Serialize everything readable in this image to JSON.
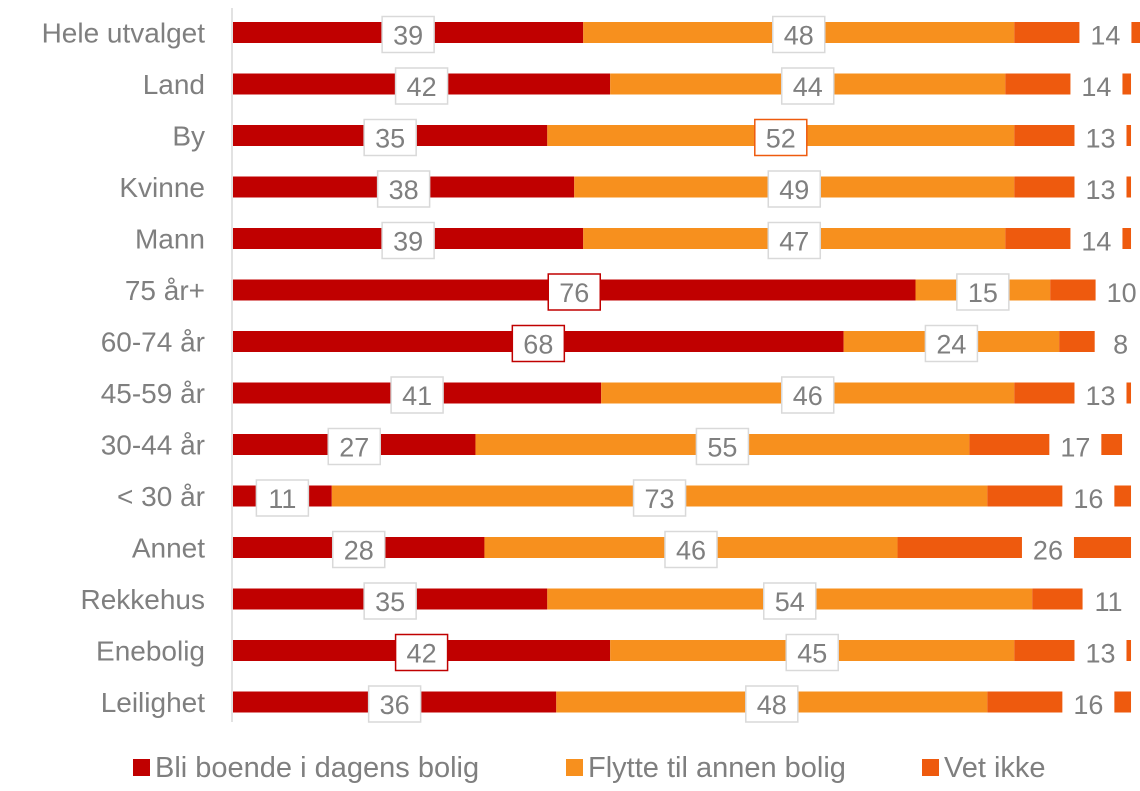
{
  "chart_data": {
    "type": "bar",
    "orientation": "horizontal",
    "stacked": true,
    "categories": [
      "Hele utvalget",
      "Land",
      "By",
      "Kvinne",
      "Mann",
      "75 år+",
      "60-74 år",
      "45-59 år",
      "30-44 år",
      "< 30 år",
      "Annet",
      "Rekkehus",
      "Enebolig",
      "Leilighet"
    ],
    "series": [
      {
        "name": "Bli boende i dagens bolig",
        "color": "#c00000",
        "values": [
          39,
          42,
          35,
          38,
          39,
          76,
          68,
          41,
          27,
          11,
          28,
          35,
          42,
          36
        ]
      },
      {
        "name": "Flytte til annen bolig",
        "color": "#f7901e",
        "values": [
          48,
          44,
          52,
          49,
          47,
          15,
          24,
          46,
          55,
          73,
          46,
          54,
          45,
          48
        ]
      },
      {
        "name": "Vet ikke",
        "color": "#ee5a0e",
        "values": [
          14,
          14,
          13,
          13,
          14,
          10,
          8,
          13,
          17,
          16,
          26,
          11,
          13,
          16
        ]
      }
    ],
    "highlighted_labels": [
      {
        "category": "By",
        "series": "Flytte til annen bolig"
      },
      {
        "category": "75 år+",
        "series": "Bli boende i dagens bolig"
      },
      {
        "category": "60-74 år",
        "series": "Bli boende i dagens bolig"
      },
      {
        "category": "Enebolig",
        "series": "Bli boende i dagens bolig"
      }
    ],
    "legend_position": "bottom",
    "grid": false,
    "title": "",
    "xlabel": "",
    "ylabel": ""
  }
}
